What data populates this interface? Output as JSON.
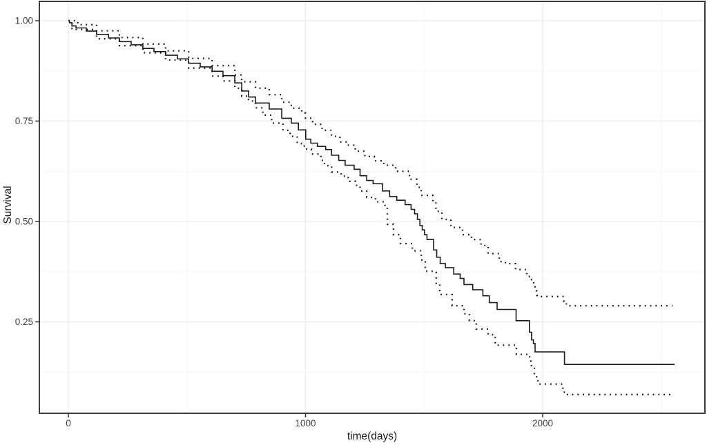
{
  "chart_data": {
    "type": "line",
    "subtype": "kaplan-meier-step-curve",
    "title": "",
    "xlabel": "time(days)",
    "ylabel": "Survival",
    "xlim": [
      -122,
      2684
    ],
    "ylim": [
      0.022,
      1.048
    ],
    "grid": true,
    "legend_position": "none",
    "x_ticks": [
      0,
      1000,
      2000
    ],
    "x_tick_labels": [
      "0",
      "1000",
      "2000"
    ],
    "x_minor_ticks": [
      500,
      1500,
      2500
    ],
    "y_ticks": [
      1.0,
      0.75,
      0.5,
      0.25
    ],
    "y_tick_labels": [
      "1.00",
      "0.75",
      "0.50",
      "0.25"
    ],
    "y_minor_ticks": [
      0.875,
      0.625,
      0.375,
      0.125
    ],
    "colors": {
      "line": "#1a1a1a",
      "grid_major": "#ebebeb",
      "grid_minor": "#f5f5f5",
      "panel_border": "#3c3c3c",
      "tick_mark": "#333333",
      "axis_text": "#404040",
      "background": "#ffffff"
    },
    "series": [
      {
        "name": "survival-estimate",
        "style": "solid",
        "points": [
          [
            0,
            1.0
          ],
          [
            5,
            0.995
          ],
          [
            15,
            0.987
          ],
          [
            32,
            0.982
          ],
          [
            76,
            0.974
          ],
          [
            119,
            0.966
          ],
          [
            169,
            0.957
          ],
          [
            215,
            0.948
          ],
          [
            265,
            0.94
          ],
          [
            314,
            0.931
          ],
          [
            361,
            0.923
          ],
          [
            410,
            0.914
          ],
          [
            460,
            0.905
          ],
          [
            507,
            0.894
          ],
          [
            556,
            0.885
          ],
          [
            606,
            0.874
          ],
          [
            652,
            0.863
          ],
          [
            702,
            0.845
          ],
          [
            731,
            0.825
          ],
          [
            760,
            0.81
          ],
          [
            789,
            0.795
          ],
          [
            847,
            0.78
          ],
          [
            900,
            0.757
          ],
          [
            940,
            0.745
          ],
          [
            970,
            0.728
          ],
          [
            1001,
            0.705
          ],
          [
            1022,
            0.695
          ],
          [
            1050,
            0.687
          ],
          [
            1085,
            0.679
          ],
          [
            1110,
            0.665
          ],
          [
            1140,
            0.652
          ],
          [
            1167,
            0.64
          ],
          [
            1205,
            0.63
          ],
          [
            1230,
            0.614
          ],
          [
            1258,
            0.602
          ],
          [
            1285,
            0.594
          ],
          [
            1325,
            0.576
          ],
          [
            1355,
            0.562
          ],
          [
            1385,
            0.553
          ],
          [
            1420,
            0.542
          ],
          [
            1445,
            0.53
          ],
          [
            1460,
            0.519
          ],
          [
            1472,
            0.505
          ],
          [
            1482,
            0.49
          ],
          [
            1492,
            0.479
          ],
          [
            1502,
            0.467
          ],
          [
            1512,
            0.455
          ],
          [
            1540,
            0.429
          ],
          [
            1553,
            0.411
          ],
          [
            1568,
            0.395
          ],
          [
            1590,
            0.385
          ],
          [
            1625,
            0.369
          ],
          [
            1652,
            0.358
          ],
          [
            1668,
            0.343
          ],
          [
            1705,
            0.33
          ],
          [
            1748,
            0.315
          ],
          [
            1775,
            0.298
          ],
          [
            1808,
            0.281
          ],
          [
            1888,
            0.253
          ],
          [
            1944,
            0.224
          ],
          [
            1953,
            0.205
          ],
          [
            1961,
            0.196
          ],
          [
            1968,
            0.175
          ],
          [
            2092,
            0.144
          ],
          [
            2556,
            0.144
          ]
        ]
      },
      {
        "name": "upper-confidence-limit",
        "style": "dotted",
        "points": [
          [
            0,
            1.0
          ],
          [
            40,
            0.99
          ],
          [
            119,
            0.975
          ],
          [
            215,
            0.958
          ],
          [
            314,
            0.942
          ],
          [
            410,
            0.925
          ],
          [
            507,
            0.906
          ],
          [
            606,
            0.888
          ],
          [
            702,
            0.865
          ],
          [
            731,
            0.848
          ],
          [
            789,
            0.832
          ],
          [
            847,
            0.816
          ],
          [
            900,
            0.797
          ],
          [
            940,
            0.782
          ],
          [
            984,
            0.77
          ],
          [
            1000,
            0.757
          ],
          [
            1030,
            0.742
          ],
          [
            1070,
            0.727
          ],
          [
            1110,
            0.712
          ],
          [
            1145,
            0.698
          ],
          [
            1175,
            0.69
          ],
          [
            1210,
            0.675
          ],
          [
            1250,
            0.662
          ],
          [
            1290,
            0.651
          ],
          [
            1330,
            0.64
          ],
          [
            1380,
            0.625
          ],
          [
            1438,
            0.605
          ],
          [
            1470,
            0.585
          ],
          [
            1488,
            0.565
          ],
          [
            1537,
            0.55
          ],
          [
            1550,
            0.525
          ],
          [
            1575,
            0.505
          ],
          [
            1613,
            0.485
          ],
          [
            1662,
            0.467
          ],
          [
            1700,
            0.455
          ],
          [
            1740,
            0.44
          ],
          [
            1770,
            0.42
          ],
          [
            1817,
            0.4
          ],
          [
            1843,
            0.395
          ],
          [
            1886,
            0.38
          ],
          [
            1933,
            0.363
          ],
          [
            1953,
            0.355
          ],
          [
            1962,
            0.337
          ],
          [
            1968,
            0.327
          ],
          [
            1975,
            0.316
          ],
          [
            1990,
            0.313
          ],
          [
            2090,
            0.301
          ],
          [
            2100,
            0.29
          ],
          [
            2547,
            0.29
          ]
        ]
      },
      {
        "name": "lower-confidence-limit",
        "style": "dotted",
        "points": [
          [
            0,
            1.0
          ],
          [
            15,
            0.978
          ],
          [
            119,
            0.955
          ],
          [
            215,
            0.938
          ],
          [
            314,
            0.92
          ],
          [
            410,
            0.902
          ],
          [
            507,
            0.882
          ],
          [
            606,
            0.862
          ],
          [
            652,
            0.85
          ],
          [
            702,
            0.832
          ],
          [
            731,
            0.812
          ],
          [
            760,
            0.8
          ],
          [
            789,
            0.783
          ],
          [
            820,
            0.765
          ],
          [
            857,
            0.745
          ],
          [
            905,
            0.727
          ],
          [
            935,
            0.712
          ],
          [
            965,
            0.694
          ],
          [
            995,
            0.68
          ],
          [
            1025,
            0.668
          ],
          [
            1065,
            0.652
          ],
          [
            1080,
            0.639
          ],
          [
            1110,
            0.623
          ],
          [
            1150,
            0.613
          ],
          [
            1180,
            0.6
          ],
          [
            1210,
            0.59
          ],
          [
            1230,
            0.576
          ],
          [
            1258,
            0.56
          ],
          [
            1295,
            0.549
          ],
          [
            1335,
            0.538
          ],
          [
            1345,
            0.493
          ],
          [
            1371,
            0.467
          ],
          [
            1400,
            0.445
          ],
          [
            1450,
            0.427
          ],
          [
            1488,
            0.404
          ],
          [
            1505,
            0.376
          ],
          [
            1537,
            0.373
          ],
          [
            1551,
            0.344
          ],
          [
            1566,
            0.318
          ],
          [
            1618,
            0.29
          ],
          [
            1668,
            0.27
          ],
          [
            1691,
            0.253
          ],
          [
            1720,
            0.232
          ],
          [
            1770,
            0.218
          ],
          [
            1800,
            0.192
          ],
          [
            1889,
            0.169
          ],
          [
            1945,
            0.152
          ],
          [
            1952,
            0.141
          ],
          [
            1965,
            0.118
          ],
          [
            1974,
            0.107
          ],
          [
            1980,
            0.095
          ],
          [
            2085,
            0.075
          ],
          [
            2095,
            0.069
          ],
          [
            2547,
            0.069
          ]
        ]
      }
    ]
  }
}
